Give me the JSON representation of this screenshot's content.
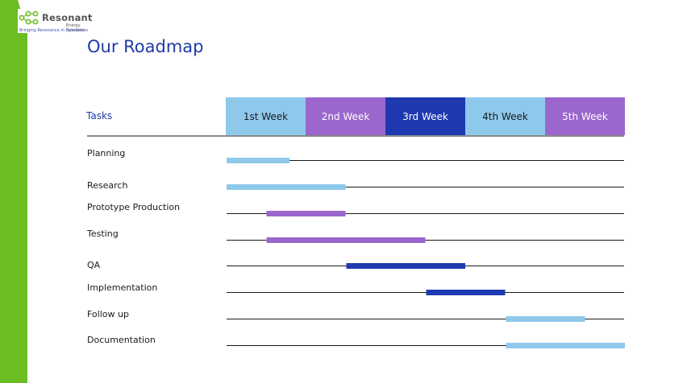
{
  "logo": {
    "brand": "Resonant",
    "brand_sub": "Energy Solutions",
    "tagline": "Bringing Resonance in Operations"
  },
  "title": "Our Roadmap",
  "tasks_header": "Tasks",
  "colors": {
    "light_blue": "#8ec9ec",
    "purple": "#9b67cc",
    "dark_blue": "#1e39b0",
    "title_blue": "#1e3aa8",
    "green": "#6cbd22"
  },
  "chart_data": {
    "type": "gantt",
    "weeks": [
      {
        "label": "1st Week",
        "color": "#8ec9ec",
        "text_color": "#1a1a1a"
      },
      {
        "label": "2nd Week",
        "color": "#9b67cc",
        "text_color": "#ffffff"
      },
      {
        "label": "3rd Week",
        "color": "#1e39b0",
        "text_color": "#ffffff"
      },
      {
        "label": "4th Week",
        "color": "#8ec9ec",
        "text_color": "#1a1a1a"
      },
      {
        "label": "5th Week",
        "color": "#9b67cc",
        "text_color": "#ffffff"
      }
    ],
    "tasks": [
      {
        "name": "Planning",
        "start": 0.0,
        "end": 0.8,
        "color": "#8ec9ec"
      },
      {
        "name": "Research",
        "start": 0.0,
        "end": 1.5,
        "color": "#8ec9ec"
      },
      {
        "name": "Prototype Production",
        "start": 0.5,
        "end": 1.5,
        "color": "#9b67cc"
      },
      {
        "name": "Testing",
        "start": 0.5,
        "end": 2.5,
        "color": "#9b67cc"
      },
      {
        "name": "QA",
        "start": 1.5,
        "end": 3.0,
        "color": "#1e39b0"
      },
      {
        "name": "Implementation",
        "start": 2.5,
        "end": 3.5,
        "color": "#1e39b0"
      },
      {
        "name": "Follow up",
        "start": 3.5,
        "end": 4.5,
        "color": "#8ec9ec"
      },
      {
        "name": "Documentation",
        "start": 3.5,
        "end": 5.0,
        "color": "#8ec9ec"
      }
    ]
  }
}
